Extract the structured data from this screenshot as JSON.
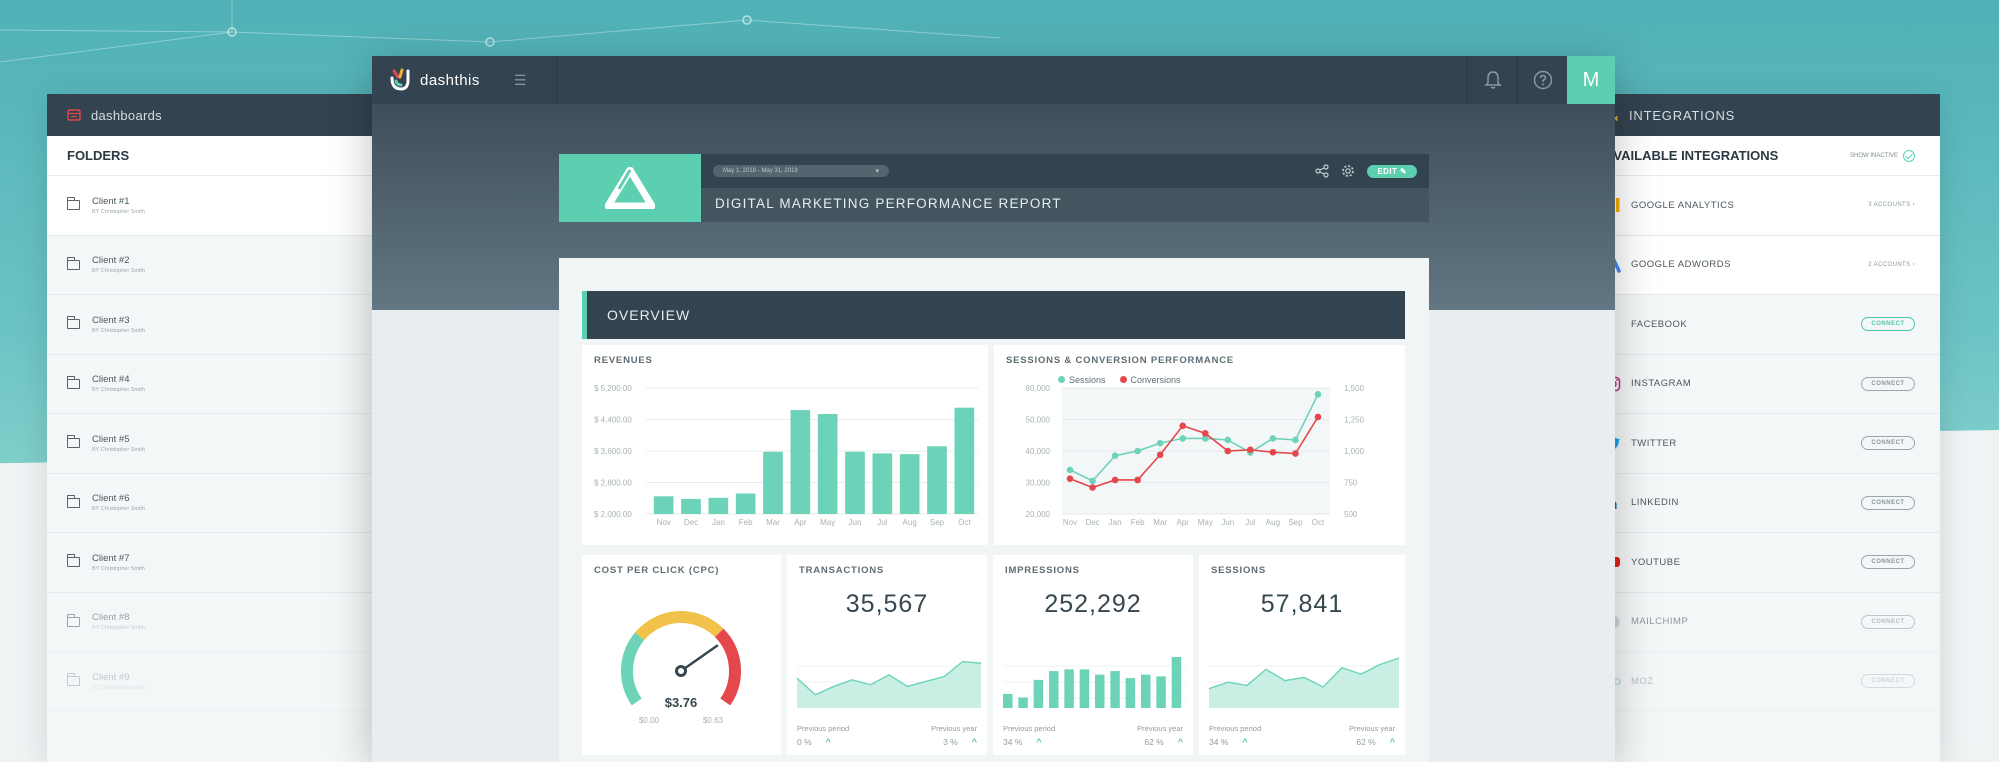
{
  "left_panel": {
    "header": "dashboards",
    "subheader": "FOLDERS",
    "folders": [
      {
        "name": "Client #1",
        "by": "BY Christopher Smith"
      },
      {
        "name": "Client #2",
        "by": "BY Christopher Smith"
      },
      {
        "name": "Client #3",
        "by": "BY Christopher Smith"
      },
      {
        "name": "Client #4",
        "by": "BY Christopher Smith"
      },
      {
        "name": "Client #5",
        "by": "BY Christopher Smith"
      },
      {
        "name": "Client #6",
        "by": "BY Christopher Smith"
      },
      {
        "name": "Client #7",
        "by": "BY Christopher Smith"
      },
      {
        "name": "Client #8",
        "by": "BY Christopher Smith"
      },
      {
        "name": "Client #9",
        "by": "BY Christopher Smith"
      }
    ]
  },
  "right_panel": {
    "header": "INTEGRATIONS",
    "subheader": "AVAILABLE INTEGRATIONS",
    "show_inactive": "SHOW INACTIVE",
    "integrations": [
      {
        "name": "GOOGLE ANALYTICS",
        "status": "3 ACCOUNTS",
        "icon": "google-analytics-icon"
      },
      {
        "name": "GOOGLE ADWORDS",
        "status": "2 ACCOUNTS",
        "icon": "google-adwords-icon"
      },
      {
        "name": "FACEBOOK",
        "status": "CONNECT",
        "icon": "facebook-icon"
      },
      {
        "name": "INSTAGRAM",
        "status": "CONNECT",
        "icon": "instagram-icon"
      },
      {
        "name": "TWITTER",
        "status": "CONNECT",
        "icon": "twitter-icon"
      },
      {
        "name": "LINKEDIN",
        "status": "CONNECT",
        "icon": "linkedin-icon"
      },
      {
        "name": "YOUTUBE",
        "status": "CONNECT",
        "icon": "youtube-icon"
      },
      {
        "name": "MAILCHIMP",
        "status": "CONNECT",
        "icon": "mailchimp-icon"
      },
      {
        "name": "MOZ",
        "status": "CONNECT",
        "icon": "moz-icon"
      }
    ]
  },
  "app": {
    "logo_text": "dashthis",
    "avatar_letter": "M",
    "accent_color": "#5ccfb0",
    "dark_color": "#33434f"
  },
  "report": {
    "date_range": "May 1, 2018 - May 31, 2018",
    "edit_label": "EDIT",
    "title": "DIGITAL MARKETING PERFORMANCE REPORT",
    "overview_label": "OVERVIEW"
  },
  "widgets": {
    "revenues": {
      "title": "REVENUES"
    },
    "sessions_conv": {
      "title": "SESSIONS & CONVERSION PERFORMANCE",
      "legend_a": "Sessions",
      "legend_b": "Conversions"
    },
    "cpc": {
      "title": "COST PER CLICK (CPC)",
      "value": "$3.76",
      "min": "$0.00",
      "max": "$0.63",
      "level": 0.72
    },
    "transactions": {
      "title": "TRANSACTIONS",
      "value": "35,567",
      "prev_period_label": "Previous period",
      "prev_year_label": "Previous year",
      "prev_period": "0 %",
      "prev_year": "3 %"
    },
    "impressions": {
      "title": "IMPRESSIONS",
      "value": "252,292",
      "prev_period_label": "Previous period",
      "prev_year_label": "Previous year",
      "prev_period": "34 %",
      "prev_year": "62 %"
    },
    "sessions": {
      "title": "SESSIONS",
      "value": "57,841",
      "prev_period_label": "Previous period",
      "prev_year_label": "Previous year",
      "prev_period": "34 %",
      "prev_year": "62 %"
    }
  },
  "chart_data": [
    {
      "type": "bar",
      "title": "REVENUES",
      "categories": [
        "Nov",
        "Dec",
        "Jan",
        "Feb",
        "Mar",
        "Apr",
        "May",
        "Jun",
        "Jul",
        "Aug",
        "Sep",
        "Oct"
      ],
      "values": [
        2450,
        2380,
        2410,
        2520,
        3580,
        4640,
        4540,
        3580,
        3540,
        3520,
        3720,
        4700
      ],
      "ylim": [
        2000,
        5200
      ],
      "yticks": [
        "$ 2,000.00",
        "$ 2,800.00",
        "$ 3,600.00",
        "$ 4,400.00",
        "$ 5,200.00"
      ],
      "ytick_values": [
        2000,
        2800,
        3600,
        4400,
        5200
      ],
      "color": "#6dd3b8"
    },
    {
      "type": "line",
      "title": "SESSIONS & CONVERSION PERFORMANCE",
      "categories": [
        "Nov",
        "Dec",
        "Jan",
        "Feb",
        "Mar",
        "Apr",
        "May",
        "Jun",
        "Jul",
        "Aug",
        "Sep",
        "Oct"
      ],
      "left_ylim": [
        20000,
        60000
      ],
      "left_yticks": [
        "20,000",
        "30,000",
        "40,000",
        "50,000",
        "60,000"
      ],
      "left_ytick_values": [
        20000,
        30000,
        40000,
        50000,
        60000
      ],
      "right_ylim": [
        500,
        1500
      ],
      "right_yticks": [
        "500",
        "750",
        "1,000",
        "1,250",
        "1,500"
      ],
      "right_ytick_values": [
        500,
        750,
        1000,
        1250,
        1500
      ],
      "series": [
        {
          "name": "Sessions",
          "axis": "left",
          "color": "#6dd3b8",
          "values": [
            34000,
            30500,
            38500,
            40000,
            42500,
            44000,
            44000,
            43500,
            39500,
            44000,
            43500,
            58000
          ]
        },
        {
          "name": "Conversions",
          "axis": "right",
          "color": "#e4474c",
          "values": [
            780,
            710,
            770,
            770,
            970,
            1200,
            1140,
            1000,
            1010,
            990,
            980,
            1270
          ]
        }
      ]
    },
    {
      "type": "area",
      "title": "TRANSACTIONS",
      "values": [
        18,
        8,
        13,
        17,
        14,
        20,
        13,
        16,
        19,
        28,
        27
      ],
      "ylim": [
        0,
        35
      ],
      "color": "#6dd3b8"
    },
    {
      "type": "bar",
      "title": "IMPRESSIONS",
      "values": [
        8,
        6,
        16,
        21,
        22,
        22,
        19,
        21,
        17,
        19,
        18,
        29
      ],
      "ylim": [
        0,
        33
      ],
      "color": "#6dd3b8"
    },
    {
      "type": "area",
      "title": "SESSIONS",
      "values": [
        12,
        16,
        14,
        24,
        17,
        19,
        13,
        25,
        21,
        27,
        31
      ],
      "ylim": [
        0,
        36
      ],
      "color": "#6dd3b8"
    }
  ]
}
